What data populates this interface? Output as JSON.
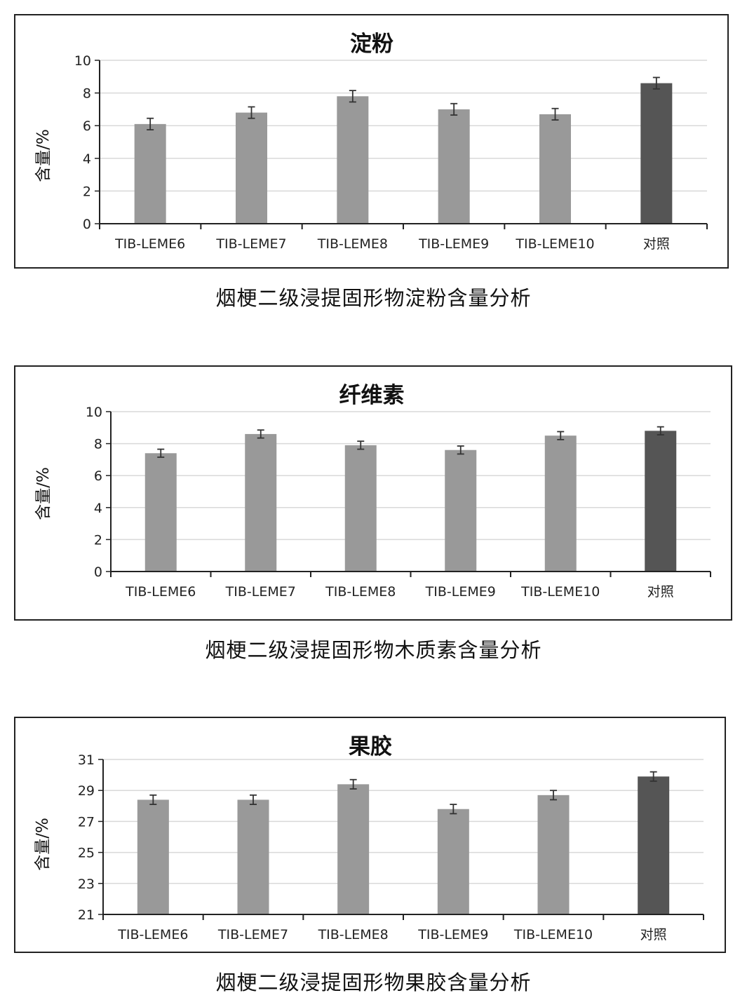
{
  "charts": [
    {
      "title": "淀粉",
      "ylabel": "含量/%",
      "caption": "烟梗二级浸提固形物淀粉含量分析",
      "tick_labels": [
        "0",
        "2",
        "4",
        "6",
        "8",
        "10"
      ],
      "category_labels": [
        "TIB-LEME6",
        "TIB-LEME7",
        "TIB-LEME8",
        "TIB-LEME9",
        "TIB-LEME10",
        "对照"
      ]
    },
    {
      "title": "纤维素",
      "ylabel": "含量/%",
      "caption": "烟梗二级浸提固形物木质素含量分析",
      "tick_labels": [
        "0",
        "2",
        "4",
        "6",
        "8",
        "10"
      ],
      "category_labels": [
        "TIB-LEME6",
        "TIB-LEME7",
        "TIB-LEME8",
        "TIB-LEME9",
        "TIB-LEME10",
        "对照"
      ]
    },
    {
      "title": "果胶",
      "ylabel": "含量/%",
      "caption": "烟梗二级浸提固形物果胶含量分析",
      "tick_labels": [
        "21",
        "23",
        "25",
        "27",
        "29",
        "31"
      ],
      "category_labels": [
        "TIB-LEME6",
        "TIB-LEME7",
        "TIB-LEME8",
        "TIB-LEME9",
        "TIB-LEME10",
        "对照"
      ]
    }
  ],
  "colors": {
    "bar": "#999999",
    "control_bar": "#555555",
    "gridline": "#d9d9d9",
    "axis": "#222222"
  },
  "chart_data": [
    {
      "type": "bar",
      "title": "淀粉",
      "xlabel": "",
      "ylabel": "含量/%",
      "categories": [
        "TIB-LEME6",
        "TIB-LEME7",
        "TIB-LEME8",
        "TIB-LEME9",
        "TIB-LEME10",
        "对照"
      ],
      "values": [
        6.1,
        6.8,
        7.8,
        7.0,
        6.7,
        8.6
      ],
      "error": [
        0.35,
        0.35,
        0.35,
        0.35,
        0.35,
        0.35
      ],
      "ylim": [
        0,
        10
      ],
      "yticks": [
        0,
        2,
        4,
        6,
        8,
        10
      ],
      "grid": true,
      "legend": "none"
    },
    {
      "type": "bar",
      "title": "纤维素",
      "xlabel": "",
      "ylabel": "含量/%",
      "categories": [
        "TIB-LEME6",
        "TIB-LEME7",
        "TIB-LEME8",
        "TIB-LEME9",
        "TIB-LEME10",
        "对照"
      ],
      "values": [
        7.4,
        8.6,
        7.9,
        7.6,
        8.5,
        8.8
      ],
      "error": [
        0.25,
        0.25,
        0.25,
        0.25,
        0.25,
        0.25
      ],
      "ylim": [
        0,
        10
      ],
      "yticks": [
        0,
        2,
        4,
        6,
        8,
        10
      ],
      "grid": true,
      "legend": "none"
    },
    {
      "type": "bar",
      "title": "果胶",
      "xlabel": "",
      "ylabel": "含量/%",
      "categories": [
        "TIB-LEME6",
        "TIB-LEME7",
        "TIB-LEME8",
        "TIB-LEME9",
        "TIB-LEME10",
        "对照"
      ],
      "values": [
        28.4,
        28.4,
        29.4,
        27.8,
        28.7,
        29.9
      ],
      "error": [
        0.3,
        0.3,
        0.3,
        0.3,
        0.3,
        0.3
      ],
      "ylim": [
        21,
        31
      ],
      "yticks": [
        21,
        23,
        25,
        27,
        29,
        31
      ],
      "grid": true,
      "legend": "none"
    }
  ]
}
